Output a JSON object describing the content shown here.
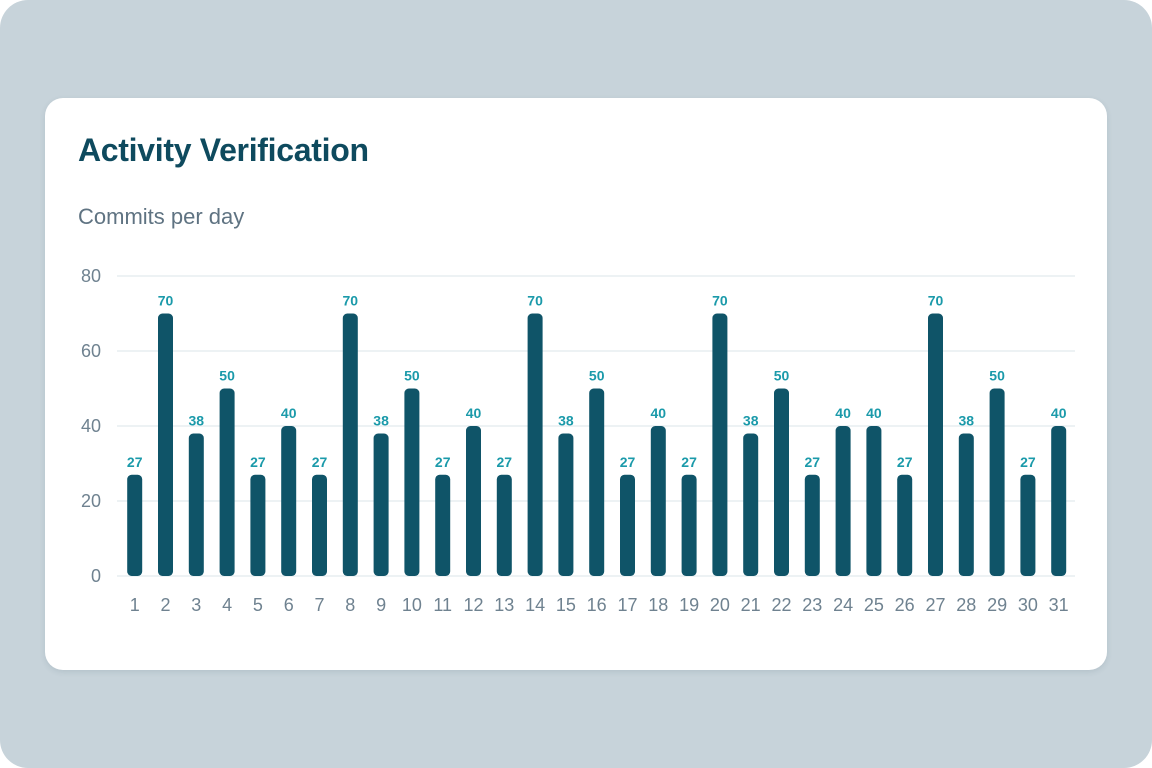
{
  "card": {
    "title": "Activity Verification",
    "subtitle": "Commits per day"
  },
  "colors": {
    "frame_background": "#c7d3da",
    "card_background": "#ffffff",
    "title": "#0e4a5e",
    "subtitle": "#5f7382",
    "bar": "#0f5468",
    "value_label": "#1b9aaa",
    "tick_label": "#6f8290",
    "gridline": "#e7edf1"
  },
  "chart_data": {
    "type": "bar",
    "title": "",
    "xlabel": "",
    "ylabel": "",
    "ylim": [
      0,
      80
    ],
    "yticks": [
      0,
      20,
      40,
      60,
      80
    ],
    "grid": true,
    "data_labels": true,
    "categories": [
      "1",
      "2",
      "3",
      "4",
      "5",
      "6",
      "7",
      "8",
      "9",
      "10",
      "11",
      "12",
      "13",
      "14",
      "15",
      "16",
      "17",
      "18",
      "19",
      "20",
      "21",
      "22",
      "23",
      "24",
      "25",
      "26",
      "27",
      "28",
      "29",
      "30",
      "31"
    ],
    "values": [
      27,
      70,
      38,
      50,
      27,
      40,
      27,
      70,
      38,
      50,
      27,
      40,
      27,
      70,
      38,
      50,
      27,
      40,
      27,
      70,
      38,
      50,
      27,
      40,
      40,
      27,
      70,
      38,
      50,
      27,
      40
    ]
  }
}
